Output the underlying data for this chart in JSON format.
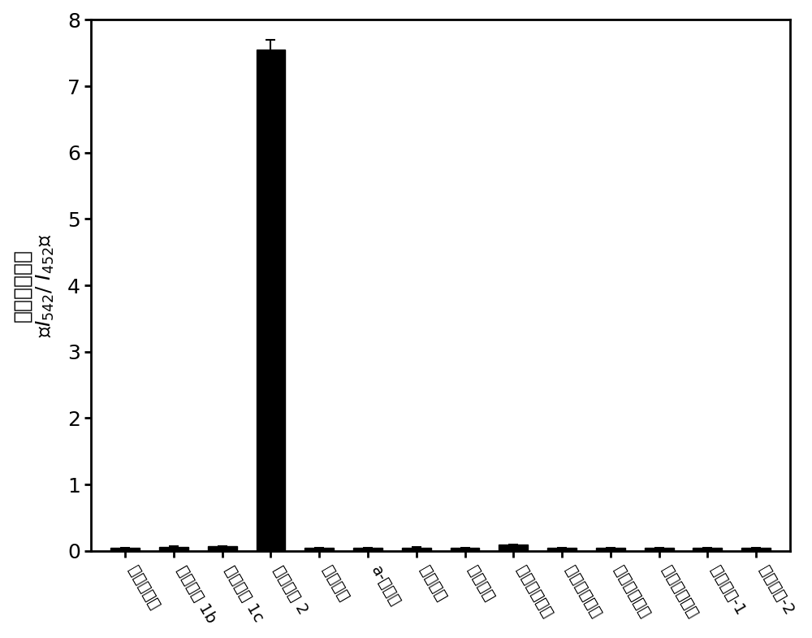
{
  "categories": [
    "磷酸缓冲液",
    "羟酸酯酶 1b",
    "羟酸酯酶 1c",
    "羟酸酯酶 2",
    "碳酸鄄酶",
    "a-淠粉酶",
    "胃蛋白酶",
    "胰蛋白酶",
    "牛血清白蛋白",
    "人血清白蛋白",
    "乙酰胆碳酯酶",
    "丁酰胰碳酯酶",
    "对氧磷酶-1",
    "对氧磷酶-2"
  ],
  "values": [
    0.04,
    0.06,
    0.07,
    7.55,
    0.04,
    0.04,
    0.05,
    0.04,
    0.09,
    0.04,
    0.04,
    0.04,
    0.04,
    0.04
  ],
  "errors": [
    0.005,
    0.005,
    0.005,
    0.15,
    0.005,
    0.005,
    0.005,
    0.005,
    0.01,
    0.005,
    0.005,
    0.005,
    0.005,
    0.005
  ],
  "bar_color": "#000000",
  "edge_color": "#000000",
  "ylim": [
    0,
    8
  ],
  "yticks": [
    0,
    1,
    2,
    3,
    4,
    5,
    6,
    7,
    8
  ],
  "bar_width": 0.6,
  "figsize": [
    10.0,
    7.85
  ],
  "dpi": 100,
  "background_color": "#ffffff",
  "tick_fontsize": 18,
  "ylabel_fontsize": 18,
  "xtick_fontsize": 14
}
